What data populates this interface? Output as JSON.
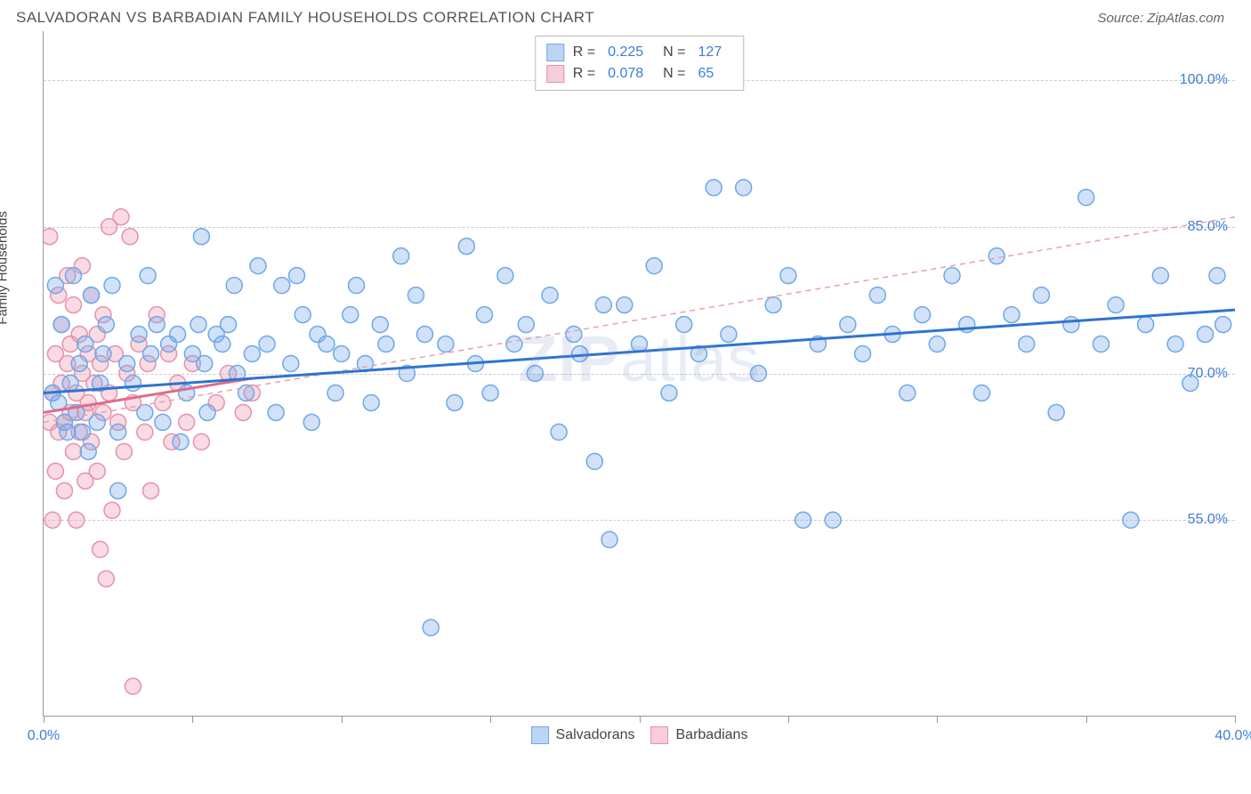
{
  "header": {
    "title": "SALVADORAN VS BARBADIAN FAMILY HOUSEHOLDS CORRELATION CHART",
    "source": "Source: ZipAtlas.com"
  },
  "chart": {
    "type": "scatter",
    "y_axis_label": "Family Households",
    "watermark": "ZIPatlas",
    "background_color": "#ffffff",
    "grid_color": "#cccccc",
    "axis_color": "#999999",
    "xlim": [
      0,
      40
    ],
    "ylim": [
      35,
      105
    ],
    "x_ticks": [
      0,
      5,
      10,
      15,
      20,
      25,
      30,
      35,
      40
    ],
    "x_tick_labels": {
      "0": "0.0%",
      "40": "40.0%"
    },
    "y_ticks": [
      55,
      70,
      85,
      100
    ],
    "y_tick_labels": {
      "55": "55.0%",
      "70": "70.0%",
      "85": "85.0%",
      "100": "100.0%"
    },
    "marker_radius": 9,
    "marker_stroke_width": 1.5,
    "series": [
      {
        "name": "Salvadorans",
        "fill_color": "rgba(120,170,235,0.35)",
        "stroke_color": "#6fa8e8",
        "swatch_fill": "#bcd5f5",
        "swatch_border": "#6fa8e8",
        "R": "0.225",
        "N": "127",
        "trend": {
          "x1": 0,
          "y1": 68,
          "x2": 40,
          "y2": 76.5,
          "color": "#2e74d0",
          "width": 3,
          "dash": "none"
        },
        "trend2": {
          "x1": 0,
          "y1": 65,
          "x2": 40,
          "y2": 86,
          "color": "#e8a0b0",
          "width": 1.5,
          "dash": "6,5"
        },
        "points": [
          [
            0.3,
            68
          ],
          [
            0.5,
            67
          ],
          [
            0.4,
            79
          ],
          [
            0.6,
            75
          ],
          [
            0.7,
            65
          ],
          [
            0.8,
            64
          ],
          [
            0.9,
            69
          ],
          [
            1.0,
            80
          ],
          [
            1.1,
            66
          ],
          [
            1.2,
            71
          ],
          [
            1.3,
            64
          ],
          [
            1.4,
            73
          ],
          [
            1.5,
            62
          ],
          [
            1.6,
            78
          ],
          [
            1.8,
            65
          ],
          [
            1.9,
            69
          ],
          [
            2.0,
            72
          ],
          [
            2.1,
            75
          ],
          [
            2.3,
            79
          ],
          [
            2.5,
            64
          ],
          [
            2.5,
            58
          ],
          [
            2.8,
            71
          ],
          [
            3.0,
            69
          ],
          [
            3.2,
            74
          ],
          [
            3.4,
            66
          ],
          [
            3.5,
            80
          ],
          [
            3.6,
            72
          ],
          [
            3.8,
            75
          ],
          [
            4.0,
            65
          ],
          [
            4.2,
            73
          ],
          [
            4.5,
            74
          ],
          [
            4.6,
            63
          ],
          [
            4.8,
            68
          ],
          [
            5.0,
            72
          ],
          [
            5.2,
            75
          ],
          [
            5.3,
            84
          ],
          [
            5.4,
            71
          ],
          [
            5.5,
            66
          ],
          [
            5.8,
            74
          ],
          [
            6.0,
            73
          ],
          [
            6.2,
            75
          ],
          [
            6.4,
            79
          ],
          [
            6.5,
            70
          ],
          [
            6.8,
            68
          ],
          [
            7.0,
            72
          ],
          [
            7.2,
            81
          ],
          [
            7.5,
            73
          ],
          [
            7.8,
            66
          ],
          [
            8.0,
            79
          ],
          [
            8.3,
            71
          ],
          [
            8.5,
            80
          ],
          [
            8.7,
            76
          ],
          [
            9.0,
            65
          ],
          [
            9.2,
            74
          ],
          [
            9.5,
            73
          ],
          [
            9.8,
            68
          ],
          [
            10.0,
            72
          ],
          [
            10.3,
            76
          ],
          [
            10.5,
            79
          ],
          [
            10.8,
            71
          ],
          [
            11.0,
            67
          ],
          [
            11.3,
            75
          ],
          [
            11.5,
            73
          ],
          [
            12.0,
            82
          ],
          [
            12.2,
            70
          ],
          [
            12.5,
            78
          ],
          [
            12.8,
            74
          ],
          [
            13.0,
            44
          ],
          [
            13.5,
            73
          ],
          [
            13.8,
            67
          ],
          [
            14.2,
            83
          ],
          [
            14.5,
            71
          ],
          [
            14.8,
            76
          ],
          [
            15.0,
            68
          ],
          [
            15.5,
            80
          ],
          [
            15.8,
            73
          ],
          [
            16.2,
            75
          ],
          [
            16.5,
            70
          ],
          [
            17.0,
            78
          ],
          [
            17.3,
            64
          ],
          [
            17.8,
            74
          ],
          [
            18.0,
            72
          ],
          [
            18.5,
            61
          ],
          [
            18.8,
            77
          ],
          [
            19.0,
            53
          ],
          [
            19.5,
            77
          ],
          [
            20.0,
            73
          ],
          [
            20.5,
            81
          ],
          [
            21.0,
            68
          ],
          [
            21.5,
            75
          ],
          [
            22.0,
            72
          ],
          [
            22.5,
            89
          ],
          [
            23.0,
            74
          ],
          [
            23.5,
            89
          ],
          [
            24.0,
            70
          ],
          [
            24.5,
            77
          ],
          [
            25.0,
            80
          ],
          [
            25.5,
            55
          ],
          [
            26.0,
            73
          ],
          [
            26.5,
            55
          ],
          [
            27.0,
            75
          ],
          [
            27.5,
            72
          ],
          [
            28.0,
            78
          ],
          [
            28.5,
            74
          ],
          [
            29.0,
            68
          ],
          [
            29.5,
            76
          ],
          [
            30.0,
            73
          ],
          [
            30.5,
            80
          ],
          [
            31.0,
            75
          ],
          [
            31.5,
            68
          ],
          [
            32.0,
            82
          ],
          [
            32.5,
            76
          ],
          [
            33.0,
            73
          ],
          [
            33.5,
            78
          ],
          [
            34.0,
            66
          ],
          [
            34.5,
            75
          ],
          [
            35.0,
            88
          ],
          [
            35.5,
            73
          ],
          [
            36.0,
            77
          ],
          [
            36.5,
            55
          ],
          [
            37.0,
            75
          ],
          [
            37.5,
            80
          ],
          [
            38.0,
            73
          ],
          [
            38.5,
            69
          ],
          [
            39.0,
            74
          ],
          [
            39.4,
            80
          ],
          [
            39.6,
            75
          ]
        ]
      },
      {
        "name": "Barbadians",
        "fill_color": "rgba(240,150,175,0.35)",
        "stroke_color": "#e592ac",
        "swatch_fill": "#f6cdd9",
        "swatch_border": "#e592ac",
        "R": "0.078",
        "N": "65",
        "trend": {
          "x1": 0,
          "y1": 66,
          "x2": 7,
          "y2": 69.5,
          "color": "#e06a8a",
          "width": 3,
          "dash": "none"
        },
        "points": [
          [
            0.2,
            65
          ],
          [
            0.2,
            84
          ],
          [
            0.3,
            68
          ],
          [
            0.3,
            55
          ],
          [
            0.4,
            72
          ],
          [
            0.4,
            60
          ],
          [
            0.5,
            78
          ],
          [
            0.5,
            64
          ],
          [
            0.6,
            69
          ],
          [
            0.6,
            75
          ],
          [
            0.7,
            65
          ],
          [
            0.7,
            58
          ],
          [
            0.8,
            71
          ],
          [
            0.8,
            80
          ],
          [
            0.9,
            66
          ],
          [
            0.9,
            73
          ],
          [
            1.0,
            62
          ],
          [
            1.0,
            77
          ],
          [
            1.1,
            68
          ],
          [
            1.1,
            55
          ],
          [
            1.2,
            74
          ],
          [
            1.2,
            64
          ],
          [
            1.3,
            70
          ],
          [
            1.3,
            81
          ],
          [
            1.4,
            66
          ],
          [
            1.4,
            59
          ],
          [
            1.5,
            72
          ],
          [
            1.5,
            67
          ],
          [
            1.6,
            78
          ],
          [
            1.6,
            63
          ],
          [
            1.7,
            69
          ],
          [
            1.8,
            74
          ],
          [
            1.8,
            60
          ],
          [
            1.9,
            71
          ],
          [
            1.9,
            52
          ],
          [
            2.0,
            66
          ],
          [
            2.0,
            76
          ],
          [
            2.1,
            49
          ],
          [
            2.2,
            68
          ],
          [
            2.2,
            85
          ],
          [
            2.3,
            56
          ],
          [
            2.4,
            72
          ],
          [
            2.5,
            65
          ],
          [
            2.6,
            86
          ],
          [
            2.7,
            62
          ],
          [
            2.8,
            70
          ],
          [
            2.9,
            84
          ],
          [
            3.0,
            38
          ],
          [
            3.0,
            67
          ],
          [
            3.2,
            73
          ],
          [
            3.4,
            64
          ],
          [
            3.5,
            71
          ],
          [
            3.6,
            58
          ],
          [
            3.8,
            76
          ],
          [
            4.0,
            67
          ],
          [
            4.2,
            72
          ],
          [
            4.3,
            63
          ],
          [
            4.5,
            69
          ],
          [
            4.8,
            65
          ],
          [
            5.0,
            71
          ],
          [
            5.3,
            63
          ],
          [
            5.8,
            67
          ],
          [
            6.2,
            70
          ],
          [
            6.7,
            66
          ],
          [
            7.0,
            68
          ]
        ]
      }
    ]
  }
}
